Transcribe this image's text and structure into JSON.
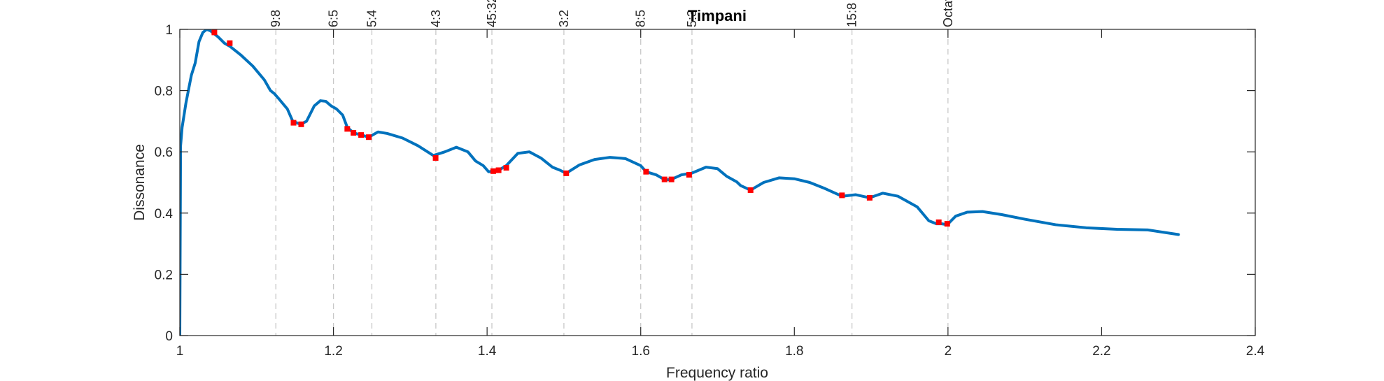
{
  "chart_data": {
    "type": "line",
    "title": "Timpani",
    "xlabel": "Frequency ratio",
    "ylabel": "Dissonance",
    "xlim": [
      1,
      2.4
    ],
    "ylim": [
      0,
      1
    ],
    "xticks": [
      1,
      1.2,
      1.4,
      1.6,
      1.8,
      2,
      2.2,
      2.4
    ],
    "yticks": [
      0,
      0.2,
      0.4,
      0.6,
      0.8,
      1
    ],
    "xtick_labels": [
      "1",
      "1.2",
      "1.4",
      "1.6",
      "1.8",
      "2",
      "2.2",
      "2.4"
    ],
    "ytick_labels": [
      "0",
      "0.2",
      "0.4",
      "0.6",
      "0.8",
      "1"
    ],
    "grid": false,
    "colors": {
      "curve": "#0072BD",
      "minima": "#FF0000",
      "reference": "#C8C8C8",
      "axes": "#262626"
    },
    "series": [
      {
        "x": [
          1.0,
          1.001,
          1.003,
          1.008,
          1.015,
          1.02,
          1.025,
          1.03,
          1.035,
          1.04,
          1.045,
          1.05,
          1.058,
          1.065,
          1.08,
          1.095,
          1.11,
          1.118,
          1.123,
          1.13,
          1.14,
          1.147,
          1.157,
          1.165,
          1.175,
          1.183,
          1.19,
          1.197,
          1.204,
          1.212,
          1.218,
          1.226,
          1.236,
          1.246,
          1.258,
          1.27,
          1.29,
          1.31,
          1.33,
          1.345,
          1.36,
          1.375,
          1.385,
          1.395,
          1.402,
          1.408,
          1.415,
          1.425,
          1.44,
          1.455,
          1.47,
          1.485,
          1.495,
          1.503,
          1.52,
          1.54,
          1.56,
          1.58,
          1.6,
          1.607,
          1.62,
          1.632,
          1.64,
          1.653,
          1.666,
          1.685,
          1.7,
          1.712,
          1.725,
          1.73,
          1.743,
          1.76,
          1.78,
          1.8,
          1.82,
          1.84,
          1.862,
          1.88,
          1.898,
          1.915,
          1.935,
          1.96,
          1.975,
          1.985,
          1.992,
          1.999,
          2.01,
          2.025,
          2.045,
          2.07,
          2.1,
          2.14,
          2.18,
          2.22,
          2.26,
          2.3
        ],
        "values": [
          0.0,
          0.62,
          0.68,
          0.76,
          0.85,
          0.89,
          0.96,
          0.99,
          1.0,
          0.995,
          0.985,
          0.975,
          0.955,
          0.945,
          0.915,
          0.88,
          0.835,
          0.8,
          0.79,
          0.77,
          0.74,
          0.7,
          0.69,
          0.7,
          0.75,
          0.767,
          0.765,
          0.75,
          0.74,
          0.72,
          0.68,
          0.662,
          0.655,
          0.648,
          0.665,
          0.66,
          0.645,
          0.62,
          0.588,
          0.6,
          0.615,
          0.6,
          0.57,
          0.555,
          0.535,
          0.537,
          0.54,
          0.555,
          0.595,
          0.6,
          0.58,
          0.55,
          0.54,
          0.53,
          0.557,
          0.575,
          0.582,
          0.578,
          0.555,
          0.535,
          0.525,
          0.508,
          0.51,
          0.525,
          0.53,
          0.55,
          0.545,
          0.52,
          0.502,
          0.49,
          0.475,
          0.5,
          0.515,
          0.512,
          0.5,
          0.48,
          0.455,
          0.46,
          0.45,
          0.465,
          0.455,
          0.42,
          0.375,
          0.365,
          0.365,
          0.362,
          0.39,
          0.403,
          0.405,
          0.395,
          0.38,
          0.362,
          0.352,
          0.347,
          0.345,
          0.33
        ]
      }
    ],
    "minima": {
      "x": [
        1.045,
        1.065,
        1.148,
        1.158,
        1.218,
        1.226,
        1.236,
        1.246,
        1.333,
        1.408,
        1.415,
        1.425,
        1.503,
        1.607,
        1.631,
        1.64,
        1.663,
        1.743,
        1.862,
        1.898,
        1.988,
        1.999
      ],
      "values": [
        0.99,
        0.955,
        0.695,
        0.69,
        0.675,
        0.662,
        0.655,
        0.648,
        0.58,
        0.537,
        0.54,
        0.548,
        0.53,
        0.535,
        0.51,
        0.51,
        0.525,
        0.475,
        0.458,
        0.45,
        0.37,
        0.365
      ]
    },
    "reference_lines": [
      {
        "x": 1.125,
        "label": "9:8"
      },
      {
        "x": 1.2,
        "label": "6:5"
      },
      {
        "x": 1.25,
        "label": "5:4"
      },
      {
        "x": 1.3333,
        "label": "4:3"
      },
      {
        "x": 1.40625,
        "label": "45:32"
      },
      {
        "x": 1.5,
        "label": "3:2"
      },
      {
        "x": 1.6,
        "label": "8:5"
      },
      {
        "x": 1.6667,
        "label": "5:3"
      },
      {
        "x": 1.875,
        "label": "15:8"
      },
      {
        "x": 2.0,
        "label": "Octave"
      }
    ]
  }
}
